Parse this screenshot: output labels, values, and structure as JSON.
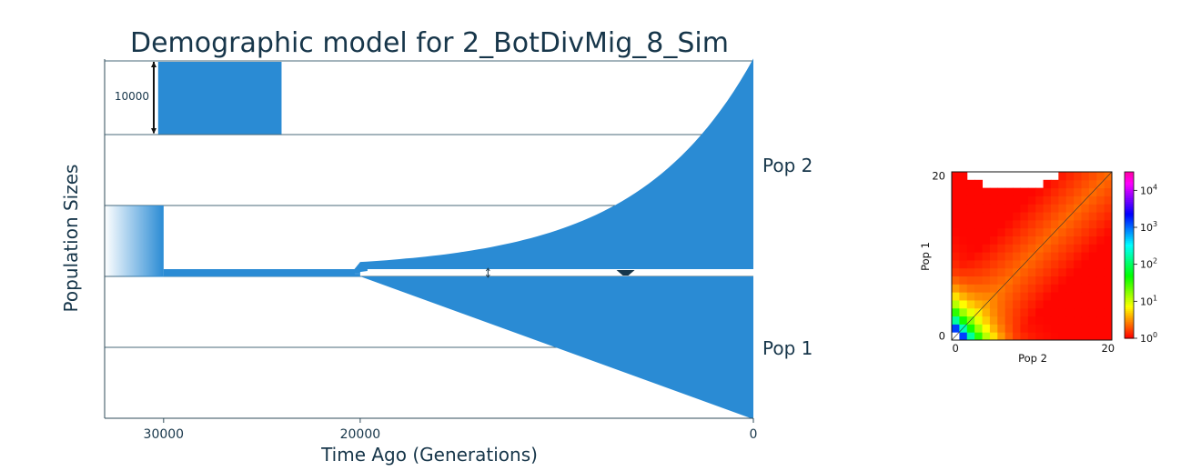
{
  "chart_data": [
    {
      "type": "area",
      "title": "Demographic model for 2_BotDivMig_8_Sim",
      "xlabel": "Time Ago (Generations)",
      "ylabel": "Population Sizes",
      "xlim": [
        33000,
        0
      ],
      "x_ticks": [
        {
          "label": "30000",
          "value": 30000
        },
        {
          "label": "20000",
          "value": 20000
        },
        {
          "label": "0",
          "value": 0
        }
      ],
      "grid": "horizontal",
      "scale_bar_label": "10000",
      "scale_bar_value": 10000,
      "reference_block_time": [
        30000,
        24000
      ],
      "ancestral": {
        "from": 33000,
        "to": 30000,
        "size": 10000,
        "fade": true
      },
      "bottleneck": {
        "from": 30000,
        "to": 20000,
        "size": 800
      },
      "split_time": 20000,
      "series": [
        {
          "name": "Pop 2",
          "start_size": 1000,
          "end_size": 29500,
          "growth": "exponential"
        },
        {
          "name": "Pop 1",
          "start_size": 0,
          "end_size": 20000,
          "growth": "linear"
        }
      ],
      "migration_arrows": [
        {
          "time": 13500,
          "weight": "thin"
        },
        {
          "time": 6500,
          "weight": "thick"
        }
      ],
      "colors": {
        "fill": "#2a8bd4",
        "grid": "#4a6878",
        "text": "#17364a"
      }
    },
    {
      "type": "heatmap",
      "xlabel": "Pop 2",
      "ylabel": "Pop 1",
      "x_ticks": [
        {
          "label": "0",
          "value": 0
        },
        {
          "label": "20",
          "value": 20
        }
      ],
      "y_ticks": [
        {
          "label": "0",
          "value": 0
        },
        {
          "label": "20",
          "value": 20
        }
      ],
      "size": 21,
      "colorbar": {
        "scale": "log",
        "ticks": [
          {
            "base": "10",
            "exp": "0",
            "value": 0
          },
          {
            "base": "10",
            "exp": "1",
            "value": 1
          },
          {
            "base": "10",
            "exp": "2",
            "value": 2
          },
          {
            "base": "10",
            "exp": "3",
            "value": 3
          },
          {
            "base": "10",
            "exp": "4",
            "value": 4
          }
        ],
        "range_log10": [
          0,
          4.5
        ]
      }
    }
  ]
}
